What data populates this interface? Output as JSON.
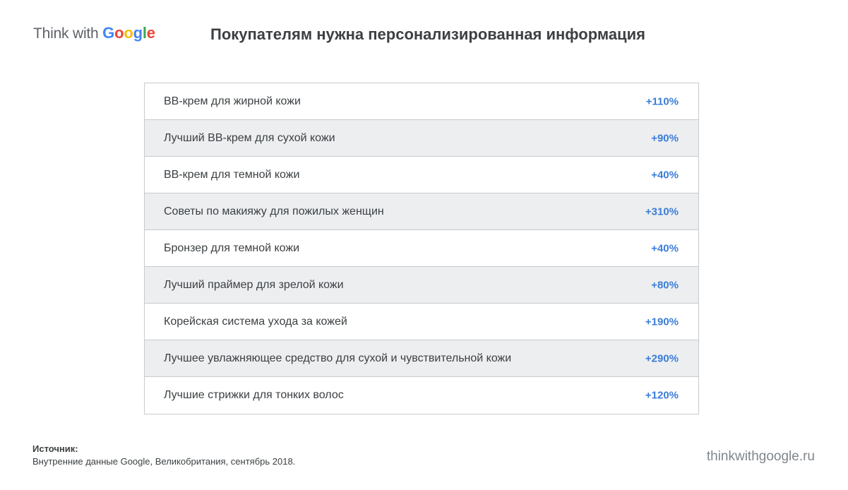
{
  "logo": {
    "prefix": "Think with ",
    "letters": [
      "G",
      "o",
      "o",
      "g",
      "l",
      "e"
    ]
  },
  "colors": {
    "google_blue": "#4285f4",
    "google_red": "#ea4335",
    "google_yellow": "#fbbc05",
    "google_green": "#34a853",
    "value_blue": "#3b7dd8",
    "row_alt": "#eceef0"
  },
  "header": {
    "title": "Покупателям нужна персонализированная информация"
  },
  "chart_data": {
    "type": "table",
    "title": "Покупателям нужна персонализированная информация",
    "rows": [
      {
        "label": "BB-крем для жирной кожи",
        "value": "+110%"
      },
      {
        "label": "Лучший BB-крем для сухой кожи",
        "value": "+90%"
      },
      {
        "label": "BB-крем для темной кожи",
        "value": "+40%"
      },
      {
        "label": "Советы по макияжу для пожилых женщин",
        "value": "+310%"
      },
      {
        "label": "Бронзер для темной кожи",
        "value": "+40%"
      },
      {
        "label": "Лучший праймер для зрелой кожи",
        "value": "+80%"
      },
      {
        "label": "Корейская система ухода за кожей",
        "value": "+190%"
      },
      {
        "label": "Лучшее увлажняющее средство для сухой и чувствительной кожи",
        "value": "+290%"
      },
      {
        "label": "Лучшие стрижки для тонких волос",
        "value": "+120%"
      }
    ]
  },
  "footer": {
    "source_label": "Источник:",
    "source_text": "Внутренние данные Google, Великобритания, сентябрь 2018.",
    "site": "thinkwithgoogle.ru"
  }
}
